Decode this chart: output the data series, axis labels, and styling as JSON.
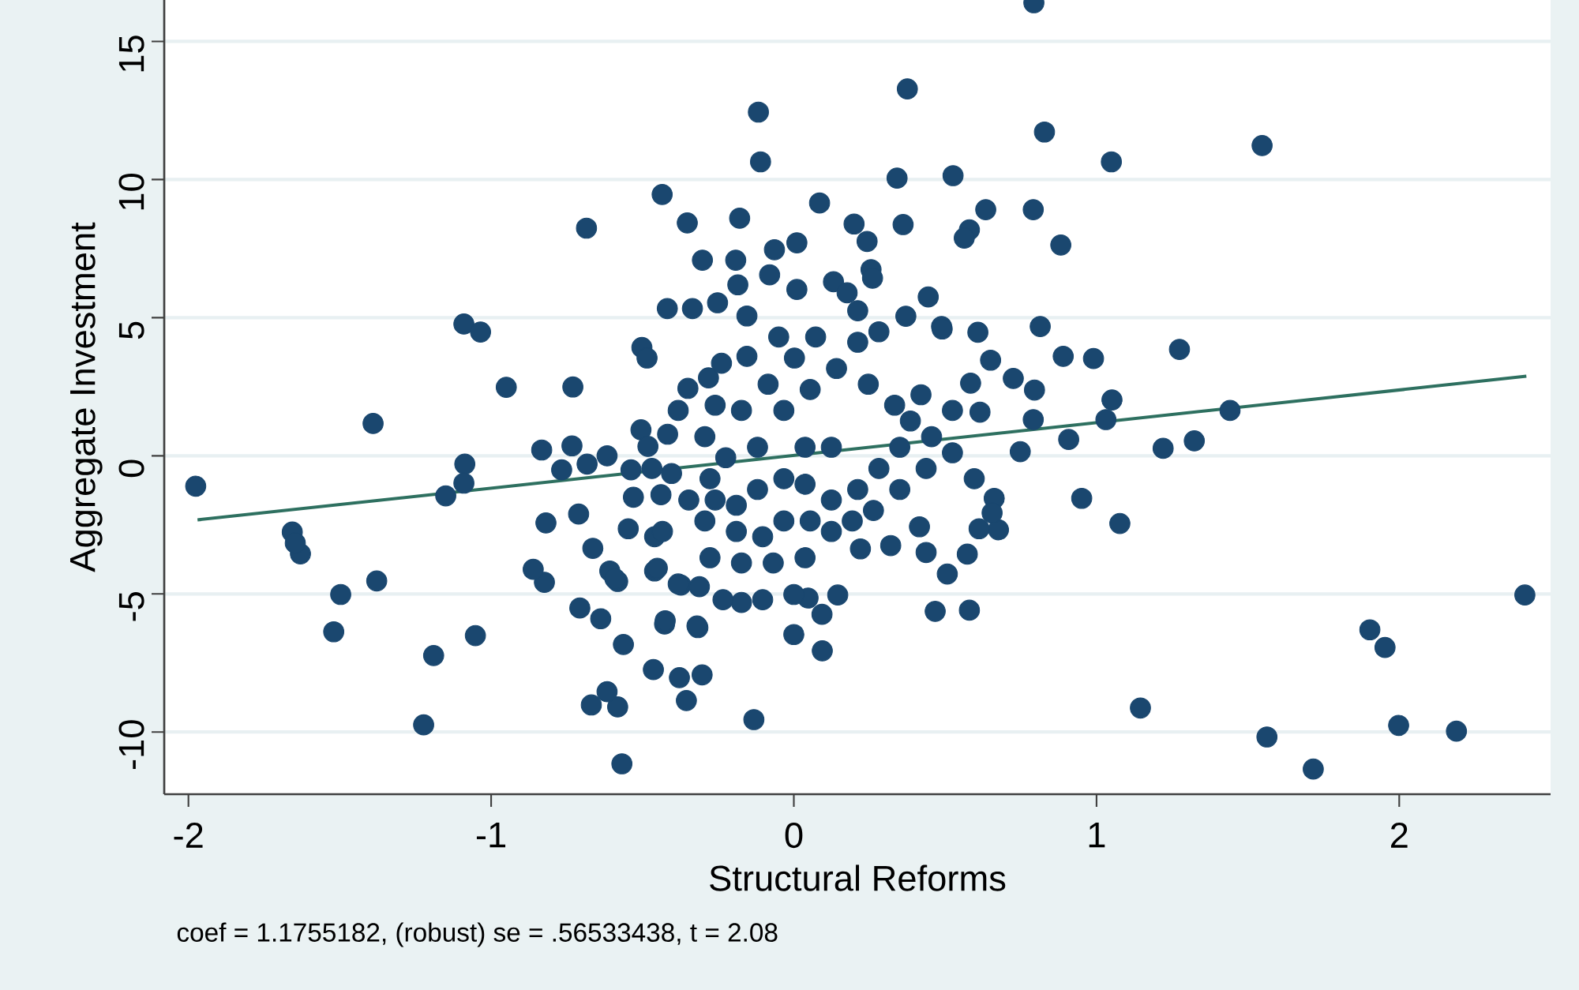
{
  "chart_data": {
    "type": "scatter",
    "xlabel": "Structural Reforms",
    "ylabel": "Aggregate Investment",
    "annotations": [
      "coef = 1.1755182, (robust) se = .56533438, t = 2.08"
    ],
    "xlim": [
      -2.08,
      2.5
    ],
    "ylim": [
      -12.25,
      16.5
    ],
    "xticks": [
      -2,
      -1,
      0,
      1,
      2
    ],
    "yticks": [
      -10,
      -5,
      0,
      5,
      10,
      15
    ],
    "grid": "y",
    "marker": "circle",
    "series": [
      {
        "color": "#1a476f",
        "x": [
          -1.976,
          -1.39,
          -1.09,
          -1.035,
          -0.95,
          -1.087,
          -1.09,
          -1.15,
          -1.657,
          -1.63,
          -1.647,
          -1.378,
          -1.497,
          -1.52,
          -1.052,
          -1.19,
          -1.223,
          -0.568,
          -0.669,
          -0.582,
          -0.617,
          -0.355,
          -0.378,
          -0.464,
          -0.303,
          -0.132,
          -0.563,
          -0.638,
          -0.707,
          -0.427,
          -0.317,
          -0.824,
          -0.861,
          -0.711,
          -0.819,
          -0.685,
          -0.435,
          -0.117,
          -0.11,
          -0.352,
          -0.179,
          -0.302,
          -0.192,
          -0.185,
          -0.064,
          -0.08,
          -0.418,
          -0.335,
          -0.252,
          -0.155,
          -0.502,
          -0.485,
          -0.73,
          -0.833,
          -0.733,
          -0.617,
          -0.767,
          -0.683,
          -0.505,
          -0.482,
          -0.417,
          -0.35,
          -0.282,
          -0.239,
          -0.155,
          -0.404,
          -0.538,
          -0.53,
          -0.439,
          0.793,
          0.375,
          0.828,
          1.049,
          1.547,
          0.341,
          0.526,
          0.085,
          0.199,
          0.361,
          0.242,
          0.634,
          0.791,
          0.58,
          0.563,
          0.882,
          0.01,
          0.255,
          0.26,
          0.131,
          0.176,
          0.444,
          0.37,
          0.814,
          0.488,
          0.608,
          0.89,
          0.99,
          1.274,
          0.795,
          0.584,
          0.725,
          0.65,
          1.051,
          0.791,
          1.031,
          1.441,
          0.615,
          0.908,
          1.22,
          1.323,
          0.748,
          0.951,
          1.077,
          2.415,
          1.903,
          1.953,
          1.145,
          1.563,
          1.716,
          1.998,
          2.189,
          0.467,
          0.58,
          0.094,
          0.507,
          0.437,
          0.573,
          0.32,
          0.22,
          0.415,
          0.676,
          0.662,
          0.093,
          0.145,
          0.047,
          0.0,
          0.596,
          -0.46,
          -0.664,
          -0.608,
          -0.582,
          -0.46,
          -0.373,
          0.01,
          0.49,
          0.655,
          0.612,
          0.0,
          -0.103,
          -0.173,
          -0.234,
          -0.312,
          -0.382,
          -0.425,
          -0.32,
          -0.591,
          -0.451,
          -0.547,
          -0.434,
          -0.469,
          -0.382,
          -0.294,
          -0.225,
          -0.12,
          -0.033,
          0.054,
          0.141,
          0.211,
          0.281,
          0.246,
          0.333,
          0.385,
          0.35,
          0.281,
          0.211,
          0.124,
          0.037,
          -0.033,
          -0.12,
          -0.19,
          -0.26,
          -0.294,
          -0.19,
          -0.103,
          -0.033,
          0.054,
          0.124,
          0.037,
          -0.068,
          -0.173,
          -0.277,
          0.35,
          0.437,
          0.455,
          0.524,
          0.42,
          0.524,
          0.124,
          0.037,
          -0.173,
          -0.26,
          -0.085,
          0.002,
          0.072,
          -0.05,
          0.211,
          -0.277,
          -0.347,
          0.193,
          0.263
        ],
        "values": [
          -1.1,
          1.17,
          4.77,
          4.48,
          2.48,
          -0.3,
          -0.99,
          -1.45,
          -2.76,
          -3.55,
          -3.16,
          -4.53,
          -5.02,
          -6.37,
          -6.51,
          -7.23,
          -9.74,
          -11.15,
          -9.02,
          -9.09,
          -8.54,
          -8.86,
          -8.03,
          -7.74,
          -7.93,
          -9.55,
          -6.83,
          -5.9,
          -5.51,
          -6.09,
          -6.22,
          -4.58,
          -4.11,
          -2.11,
          -2.43,
          8.24,
          9.46,
          12.44,
          10.64,
          8.43,
          8.6,
          7.08,
          7.08,
          6.19,
          7.46,
          6.55,
          5.33,
          5.33,
          5.54,
          5.06,
          3.92,
          3.54,
          2.49,
          0.21,
          0.36,
          0.0,
          -0.51,
          -0.3,
          0.94,
          0.34,
          0.78,
          2.44,
          2.82,
          3.35,
          3.6,
          -0.64,
          -0.51,
          -1.5,
          -1.41,
          16.4,
          13.28,
          11.72,
          10.64,
          11.23,
          10.05,
          10.14,
          9.15,
          8.39,
          8.37,
          7.76,
          8.91,
          8.91,
          8.18,
          7.88,
          7.63,
          7.71,
          6.74,
          6.43,
          6.3,
          5.9,
          5.75,
          5.05,
          4.68,
          4.68,
          4.47,
          3.6,
          3.52,
          3.85,
          2.38,
          2.63,
          2.8,
          3.46,
          2.02,
          1.31,
          1.31,
          1.64,
          1.58,
          0.59,
          0.27,
          0.54,
          0.15,
          -1.54,
          -2.45,
          -5.04,
          -6.3,
          -6.94,
          -9.13,
          -10.18,
          -11.34,
          -9.76,
          -9.97,
          -5.63,
          -5.59,
          -7.06,
          -4.28,
          -3.5,
          -3.56,
          -3.25,
          -3.37,
          -2.57,
          -2.68,
          -1.54,
          -5.74,
          -5.04,
          -5.15,
          -6.47,
          -0.83,
          -2.93,
          -3.35,
          -4.17,
          -4.55,
          -4.17,
          -4.68,
          6.02,
          4.59,
          -2.07,
          -2.64,
          -5.02,
          -5.21,
          -5.31,
          -5.21,
          -4.74,
          -4.64,
          -5.97,
          -6.16,
          -4.45,
          -4.07,
          -2.64,
          -2.74,
          -0.46,
          1.64,
          0.69,
          -0.07,
          0.31,
          1.64,
          2.4,
          3.16,
          4.11,
          4.49,
          2.59,
          1.83,
          1.26,
          0.31,
          -0.46,
          -1.22,
          -1.6,
          -1.03,
          -0.83,
          -1.22,
          -1.79,
          -1.6,
          -2.36,
          -2.74,
          -2.93,
          -2.36,
          -2.36,
          -2.74,
          -3.69,
          -3.88,
          -3.88,
          -3.69,
          -1.22,
          -0.46,
          0.69,
          0.11,
          2.21,
          1.64,
          0.31,
          0.31,
          1.64,
          1.83,
          2.59,
          3.54,
          4.3,
          4.3,
          5.25,
          -0.83,
          -1.6,
          -2.36,
          -1.98
        ]
      },
      {
        "type": "line",
        "marker": "none",
        "color": "#2e7060",
        "x": [
          -1.97,
          2.42
        ],
        "values": [
          -2.32,
          2.88
        ]
      }
    ]
  }
}
